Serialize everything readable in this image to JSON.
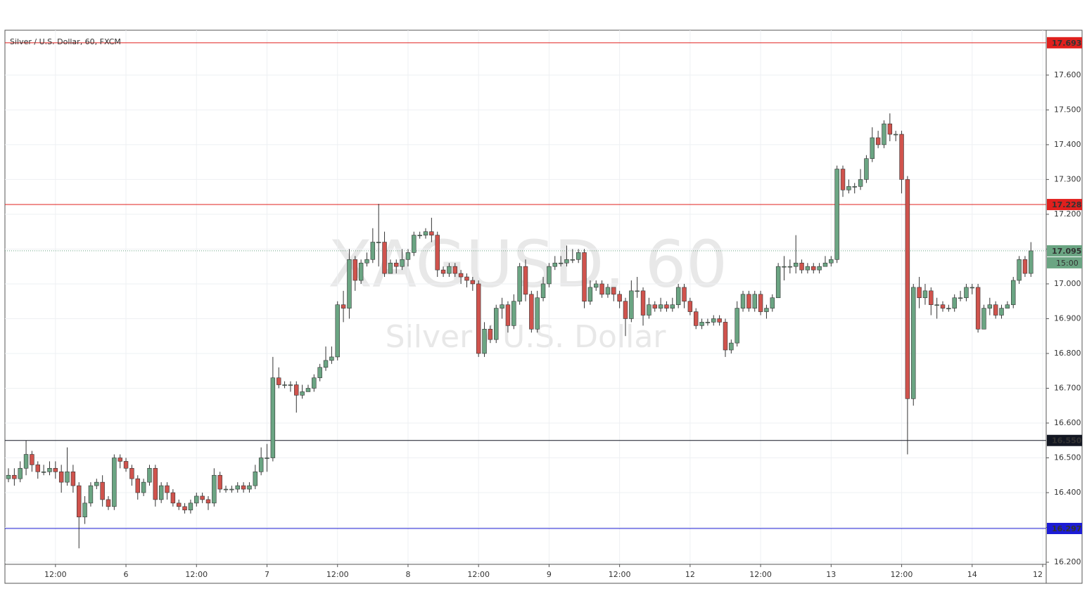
{
  "chart_data": {
    "type": "candlestick",
    "title": "Silver / U.S. Dollar, 60, FXCM",
    "watermark": [
      "XAGUSD, 60",
      "Silver / U.S. Dollar"
    ],
    "up_color": "#6ba583",
    "down_color": "#d0534d",
    "grid": true,
    "xlim": [
      -0.6,
      176.6
    ],
    "xticks": [
      {
        "value": 8,
        "label": "12:00"
      },
      {
        "value": 20,
        "label": "6"
      },
      {
        "value": 32,
        "label": "12:00"
      },
      {
        "value": 44,
        "label": "7"
      },
      {
        "value": 56,
        "label": "12:00"
      },
      {
        "value": 68,
        "label": "8"
      },
      {
        "value": 80,
        "label": "12:00"
      },
      {
        "value": 92,
        "label": "9"
      },
      {
        "value": 104,
        "label": "12:00"
      },
      {
        "value": 116,
        "label": "12"
      },
      {
        "value": 128,
        "label": "12:00"
      },
      {
        "value": 140,
        "label": "13"
      },
      {
        "value": 152,
        "label": "12:00"
      },
      {
        "value": 164,
        "label": "14"
      },
      {
        "value": 176,
        "label": "12"
      }
    ],
    "ylim": [
      16.194,
      17.729
    ],
    "yticks": [
      {
        "value": 16.2,
        "label": "16.200"
      },
      {
        "value": 16.3,
        "label": "16.300"
      },
      {
        "value": 16.4,
        "label": "16.400"
      },
      {
        "value": 16.5,
        "label": "16.500"
      },
      {
        "value": 16.6,
        "label": "16.600"
      },
      {
        "value": 16.7,
        "label": "16.700"
      },
      {
        "value": 16.8,
        "label": "16.800"
      },
      {
        "value": 16.9,
        "label": "16.900"
      },
      {
        "value": 17.0,
        "label": "17.000"
      },
      {
        "value": 17.1,
        "label": "17.100"
      },
      {
        "value": 17.2,
        "label": "17.200"
      },
      {
        "value": 17.3,
        "label": "17.300"
      },
      {
        "value": 17.4,
        "label": "17.400"
      },
      {
        "value": 17.5,
        "label": "17.500"
      },
      {
        "value": 17.6,
        "label": "17.600"
      }
    ],
    "levels": [
      {
        "value": 17.693,
        "color": "#e0201e",
        "style": "solid"
      },
      {
        "value": 17.228,
        "color": "#e0201e",
        "style": "solid"
      },
      {
        "value": 17.095,
        "color": "#6ba583",
        "style": "dotted",
        "countdown": "15:00"
      },
      {
        "value": 16.55,
        "label": "16.550",
        "color": "#131722",
        "style": "solid"
      },
      {
        "value": 16.297,
        "color": "#1c1cd6",
        "style": "solid"
      }
    ],
    "open": [
      16.44,
      16.45,
      16.44,
      16.47,
      16.51,
      16.48,
      16.46,
      16.46,
      16.47,
      16.46,
      16.43,
      16.46,
      16.42,
      16.33,
      16.37,
      16.42,
      16.43,
      16.38,
      16.36,
      16.5,
      16.49,
      16.47,
      16.44,
      16.4,
      16.43,
      16.47,
      16.38,
      16.42,
      16.4,
      16.37,
      16.36,
      16.35,
      16.37,
      16.39,
      16.38,
      16.37,
      16.45,
      16.41,
      16.41,
      16.41,
      16.42,
      16.41,
      16.42,
      16.46,
      16.5,
      16.5,
      16.73,
      16.71,
      16.71,
      16.71,
      16.68,
      16.69,
      16.7,
      16.73,
      16.76,
      16.78,
      16.79,
      16.94,
      16.93,
      17.07,
      17.01,
      17.06,
      17.07,
      17.12,
      17.12,
      17.03,
      17.06,
      17.05,
      17.07,
      17.09,
      17.14,
      17.14,
      17.15,
      17.14,
      17.04,
      17.03,
      17.05,
      17.03,
      17.02,
      17.01,
      17.0,
      16.8,
      16.87,
      16.84,
      16.93,
      16.94,
      16.88,
      16.95,
      17.05,
      16.97,
      16.87,
      16.96,
      17.0,
      17.05,
      17.06,
      17.06,
      17.07,
      17.07,
      17.09,
      16.95,
      16.99,
      17.0,
      16.97,
      16.99,
      16.97,
      16.95,
      16.9,
      16.98,
      16.98,
      16.91,
      16.94,
      16.93,
      16.94,
      16.93,
      16.94,
      16.99,
      16.95,
      16.92,
      16.88,
      16.89,
      16.89,
      16.9,
      16.89,
      16.81,
      16.83,
      16.93,
      16.97,
      16.93,
      16.97,
      16.92,
      16.93,
      16.96,
      17.05,
      17.05,
      17.05,
      17.06,
      17.04,
      17.05,
      17.04,
      17.05,
      17.06,
      17.07,
      17.33,
      17.27,
      17.28,
      17.28,
      17.3,
      17.36,
      17.42,
      17.4,
      17.46,
      17.43,
      17.43,
      17.3,
      16.67,
      16.99,
      16.96,
      16.98,
      16.94,
      16.94,
      16.93,
      16.93,
      16.96,
      16.96,
      16.99,
      16.99,
      16.87,
      16.93,
      16.94,
      16.91,
      16.93,
      16.94,
      17.01,
      17.07,
      17.03
    ],
    "high": [
      16.47,
      16.47,
      16.49,
      16.55,
      16.52,
      16.49,
      16.48,
      16.49,
      16.49,
      16.48,
      16.53,
      16.48,
      16.43,
      16.39,
      16.43,
      16.44,
      16.45,
      16.39,
      16.51,
      16.51,
      16.5,
      16.48,
      16.45,
      16.44,
      16.48,
      16.48,
      16.43,
      16.43,
      16.41,
      16.38,
      16.37,
      16.38,
      16.4,
      16.4,
      16.39,
      16.47,
      16.46,
      16.42,
      16.42,
      16.43,
      16.43,
      16.43,
      16.48,
      16.53,
      16.54,
      16.79,
      16.76,
      16.72,
      16.72,
      16.72,
      16.71,
      16.71,
      16.74,
      16.77,
      16.82,
      16.82,
      16.95,
      16.98,
      17.1,
      17.08,
      17.07,
      17.09,
      17.16,
      17.23,
      17.15,
      17.07,
      17.07,
      17.1,
      17.1,
      17.15,
      17.15,
      17.16,
      17.19,
      17.15,
      17.05,
      17.06,
      17.06,
      17.04,
      17.03,
      17.02,
      17.01,
      16.89,
      16.88,
      16.94,
      16.96,
      16.95,
      16.97,
      17.06,
      17.07,
      16.98,
      16.98,
      17.02,
      17.06,
      17.08,
      17.08,
      17.11,
      17.1,
      17.1,
      17.1,
      17.01,
      17.01,
      17.01,
      17.0,
      16.99,
      16.98,
      16.96,
      17.01,
      17.02,
      16.99,
      16.96,
      16.95,
      16.96,
      16.95,
      16.96,
      17.0,
      17.0,
      16.96,
      16.93,
      16.9,
      16.9,
      16.91,
      16.91,
      16.9,
      16.84,
      16.95,
      16.98,
      16.98,
      16.98,
      16.98,
      16.94,
      16.97,
      17.06,
      17.08,
      17.07,
      17.14,
      17.07,
      17.06,
      17.06,
      17.06,
      17.08,
      17.08,
      17.34,
      17.34,
      17.3,
      17.29,
      17.33,
      17.37,
      17.45,
      17.44,
      17.47,
      17.49,
      17.44,
      17.44,
      17.31,
      17.0,
      17.02,
      17.0,
      16.99,
      16.96,
      16.95,
      16.94,
      16.97,
      16.98,
      17.0,
      17.0,
      17.0,
      16.94,
      16.96,
      16.95,
      16.94,
      16.95,
      17.02,
      17.08,
      17.08,
      17.12
    ],
    "low": [
      16.43,
      16.42,
      16.43,
      16.45,
      16.46,
      16.44,
      16.45,
      16.45,
      16.44,
      16.4,
      16.42,
      16.4,
      16.24,
      16.31,
      16.36,
      16.41,
      16.36,
      16.35,
      16.35,
      16.47,
      16.46,
      16.42,
      16.38,
      16.39,
      16.42,
      16.36,
      16.37,
      16.38,
      16.36,
      16.35,
      16.34,
      16.34,
      16.36,
      16.37,
      16.35,
      16.36,
      16.4,
      16.4,
      16.4,
      16.4,
      16.4,
      16.4,
      16.41,
      16.45,
      16.46,
      16.49,
      16.7,
      16.7,
      16.69,
      16.63,
      16.67,
      16.69,
      16.69,
      16.72,
      16.75,
      16.77,
      16.78,
      16.89,
      16.9,
      16.98,
      17.0,
      17.05,
      17.06,
      17.05,
      17.02,
      17.03,
      17.03,
      17.04,
      17.05,
      17.08,
      17.13,
      17.13,
      17.12,
      17.02,
      17.02,
      17.02,
      17.02,
      17.0,
      16.99,
      16.98,
      16.79,
      16.79,
      16.83,
      16.83,
      16.9,
      16.86,
      16.87,
      16.94,
      16.95,
      16.86,
      16.86,
      16.95,
      16.99,
      17.04,
      17.05,
      17.05,
      17.06,
      17.06,
      16.93,
      16.94,
      16.98,
      16.96,
      16.96,
      16.95,
      16.93,
      16.85,
      16.89,
      16.96,
      16.88,
      16.9,
      16.92,
      16.92,
      16.92,
      16.92,
      16.93,
      16.93,
      16.91,
      16.87,
      16.87,
      16.88,
      16.88,
      16.88,
      16.79,
      16.8,
      16.82,
      16.92,
      16.92,
      16.92,
      16.91,
      16.9,
      16.92,
      16.96,
      17.01,
      17.03,
      17.03,
      17.03,
      17.03,
      17.03,
      17.03,
      17.05,
      17.05,
      17.06,
      17.25,
      17.26,
      17.26,
      17.27,
      17.29,
      17.35,
      17.39,
      17.39,
      17.41,
      17.41,
      17.26,
      16.51,
      16.65,
      16.93,
      16.94,
      16.91,
      16.9,
      16.92,
      16.92,
      16.92,
      16.95,
      16.95,
      16.97,
      16.86,
      16.87,
      16.91,
      16.9,
      16.9,
      16.93,
      16.93,
      17.0,
      17.02,
      17.02
    ],
    "close": [
      16.45,
      16.44,
      16.47,
      16.51,
      16.48,
      16.46,
      16.46,
      16.47,
      16.46,
      16.43,
      16.46,
      16.42,
      16.33,
      16.37,
      16.42,
      16.43,
      16.38,
      16.36,
      16.5,
      16.49,
      16.47,
      16.44,
      16.4,
      16.43,
      16.47,
      16.38,
      16.42,
      16.4,
      16.37,
      16.36,
      16.35,
      16.37,
      16.39,
      16.38,
      16.37,
      16.45,
      16.41,
      16.41,
      16.41,
      16.42,
      16.41,
      16.42,
      16.46,
      16.5,
      16.5,
      16.73,
      16.71,
      16.71,
      16.71,
      16.68,
      16.69,
      16.7,
      16.73,
      16.76,
      16.78,
      16.79,
      16.94,
      16.93,
      17.07,
      17.01,
      17.06,
      17.07,
      17.12,
      17.12,
      17.03,
      17.06,
      17.05,
      17.07,
      17.09,
      17.14,
      17.14,
      17.15,
      17.14,
      17.04,
      17.03,
      17.05,
      17.03,
      17.02,
      17.01,
      17.0,
      16.8,
      16.87,
      16.84,
      16.93,
      16.94,
      16.88,
      16.95,
      17.05,
      16.97,
      16.87,
      16.96,
      17.0,
      17.05,
      17.06,
      17.06,
      17.07,
      17.07,
      17.09,
      16.95,
      16.99,
      17.0,
      16.97,
      16.99,
      16.97,
      16.95,
      16.9,
      16.98,
      16.98,
      16.91,
      16.94,
      16.93,
      16.94,
      16.93,
      16.94,
      16.99,
      16.95,
      16.92,
      16.88,
      16.89,
      16.89,
      16.9,
      16.89,
      16.81,
      16.83,
      16.93,
      16.97,
      16.93,
      16.97,
      16.92,
      16.93,
      16.96,
      17.05,
      17.05,
      17.05,
      17.06,
      17.04,
      17.05,
      17.04,
      17.05,
      17.06,
      17.07,
      17.33,
      17.27,
      17.28,
      17.28,
      17.3,
      17.36,
      17.42,
      17.4,
      17.46,
      17.43,
      17.43,
      17.3,
      16.67,
      16.99,
      16.96,
      16.98,
      16.94,
      16.94,
      16.93,
      16.93,
      16.96,
      16.96,
      16.99,
      16.99,
      16.87,
      16.93,
      16.94,
      16.91,
      16.93,
      16.94,
      17.01,
      17.07,
      17.03,
      17.095
    ]
  }
}
